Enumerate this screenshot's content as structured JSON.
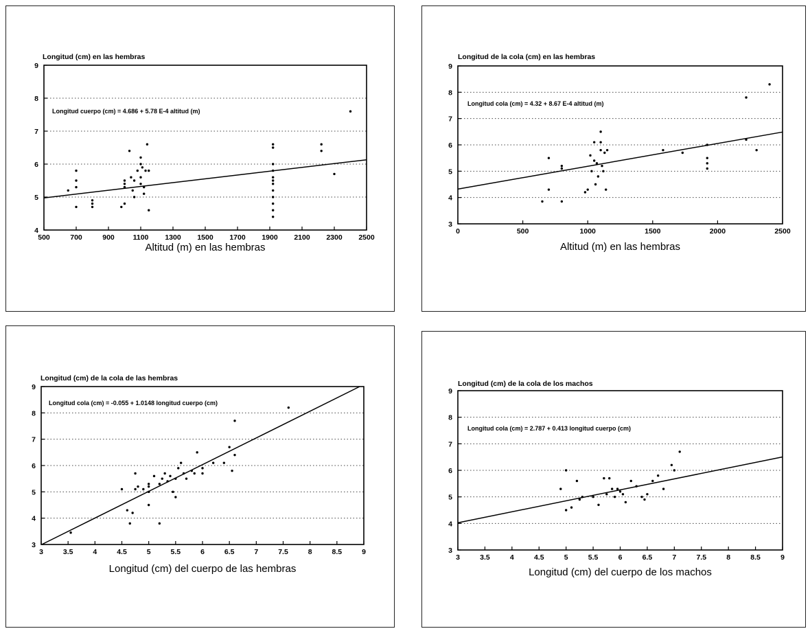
{
  "chart_data": [
    {
      "type": "scatter",
      "title": "Longitud (cm) en las hembras",
      "xlabel": "Altitud (m) en las hembras",
      "ylabel": "",
      "equation": "Longitud cuerpo (cm) = 4.686 + 5.78 E-4 altitud (m)",
      "xlim": [
        500,
        2500
      ],
      "ylim": [
        4,
        9
      ],
      "xticks": [
        500,
        700,
        900,
        1100,
        1300,
        1500,
        1700,
        1900,
        2100,
        2300,
        2500
      ],
      "yticks": [
        4,
        5,
        6,
        7,
        8,
        9
      ],
      "grid": "horizontal dotted",
      "fit_line": {
        "intercept": 4.686,
        "slope": 0.000578
      },
      "points": [
        [
          650,
          5.2
        ],
        [
          700,
          5.8
        ],
        [
          700,
          5.5
        ],
        [
          700,
          5.3
        ],
        [
          700,
          4.7
        ],
        [
          800,
          4.9
        ],
        [
          800,
          4.8
        ],
        [
          800,
          4.7
        ],
        [
          980,
          4.7
        ],
        [
          1000,
          5.5
        ],
        [
          1000,
          5.4
        ],
        [
          1000,
          5.3
        ],
        [
          1000,
          4.8
        ],
        [
          1030,
          6.4
        ],
        [
          1040,
          5.6
        ],
        [
          1050,
          5.2
        ],
        [
          1060,
          5.5
        ],
        [
          1060,
          5.0
        ],
        [
          1080,
          5.8
        ],
        [
          1100,
          6.2
        ],
        [
          1100,
          6.0
        ],
        [
          1100,
          5.6
        ],
        [
          1100,
          5.4
        ],
        [
          1110,
          5.9
        ],
        [
          1120,
          5.3
        ],
        [
          1120,
          5.1
        ],
        [
          1130,
          5.8
        ],
        [
          1140,
          6.6
        ],
        [
          1150,
          4.6
        ],
        [
          1150,
          5.8
        ],
        [
          1920,
          6.6
        ],
        [
          1920,
          6.5
        ],
        [
          1920,
          6.0
        ],
        [
          1920,
          5.8
        ],
        [
          1920,
          5.6
        ],
        [
          1920,
          5.5
        ],
        [
          1920,
          5.4
        ],
        [
          1920,
          5.2
        ],
        [
          1920,
          5.0
        ],
        [
          1920,
          4.8
        ],
        [
          1920,
          4.6
        ],
        [
          1920,
          4.4
        ],
        [
          2220,
          6.6
        ],
        [
          2220,
          6.4
        ],
        [
          2300,
          5.7
        ],
        [
          2400,
          7.6
        ]
      ]
    },
    {
      "type": "scatter",
      "title": "Longitud de la cola (cm) en las hembras",
      "xlabel": "Altitud (m) en las hembras",
      "ylabel": "",
      "equation": "Longitud cola (cm) = 4.32 + 8.67 E-4 altitud (m)",
      "xlim": [
        0,
        2500
      ],
      "ylim": [
        3,
        9
      ],
      "xticks": [
        0,
        500,
        1000,
        1500,
        2000,
        2500
      ],
      "yticks": [
        3,
        4,
        5,
        6,
        7,
        8,
        9
      ],
      "grid": "horizontal dotted",
      "fit_line": {
        "intercept": 4.32,
        "slope": 0.000867
      },
      "points": [
        [
          650,
          3.85
        ],
        [
          700,
          5.5
        ],
        [
          700,
          4.3
        ],
        [
          800,
          5.2
        ],
        [
          800,
          5.1
        ],
        [
          800,
          3.85
        ],
        [
          980,
          4.2
        ],
        [
          1000,
          4.3
        ],
        [
          1020,
          5.6
        ],
        [
          1030,
          5.0
        ],
        [
          1050,
          6.1
        ],
        [
          1050,
          5.4
        ],
        [
          1060,
          4.5
        ],
        [
          1070,
          5.3
        ],
        [
          1080,
          4.8
        ],
        [
          1100,
          6.5
        ],
        [
          1100,
          6.1
        ],
        [
          1100,
          5.8
        ],
        [
          1110,
          5.2
        ],
        [
          1120,
          5.0
        ],
        [
          1130,
          5.7
        ],
        [
          1140,
          4.3
        ],
        [
          1150,
          5.8
        ],
        [
          1580,
          5.8
        ],
        [
          1730,
          5.7
        ],
        [
          1920,
          6.0
        ],
        [
          1920,
          5.5
        ],
        [
          1920,
          5.3
        ],
        [
          1920,
          5.1
        ],
        [
          2220,
          7.8
        ],
        [
          2220,
          6.2
        ],
        [
          2300,
          5.8
        ],
        [
          2400,
          8.3
        ]
      ]
    },
    {
      "type": "scatter",
      "title": "Longitud (cm) de la cola de las hembras",
      "xlabel": "Longitud (cm) del cuerpo de las hembras",
      "ylabel": "",
      "equation": "Longitud cola (cm) = -0.055 + 1.0148 longitud cuerpo (cm)",
      "xlim": [
        3,
        9
      ],
      "ylim": [
        3,
        9
      ],
      "xticks": [
        3,
        3.5,
        4,
        4.5,
        5,
        5.5,
        6,
        6.5,
        7,
        7.5,
        8,
        8.5,
        9
      ],
      "yticks": [
        3,
        4,
        5,
        6,
        7,
        8,
        9
      ],
      "grid": "horizontal dotted",
      "fit_line": {
        "intercept": -0.055,
        "slope": 1.0148
      },
      "points": [
        [
          3.55,
          3.45
        ],
        [
          4.5,
          5.1
        ],
        [
          4.6,
          4.3
        ],
        [
          4.65,
          3.8
        ],
        [
          4.7,
          4.2
        ],
        [
          4.75,
          5.7
        ],
        [
          4.75,
          5.1
        ],
        [
          4.8,
          5.2
        ],
        [
          4.9,
          5.1
        ],
        [
          5.0,
          4.5
        ],
        [
          5.0,
          5.0
        ],
        [
          5.0,
          5.2
        ],
        [
          5.0,
          5.3
        ],
        [
          5.1,
          5.6
        ],
        [
          5.2,
          5.3
        ],
        [
          5.2,
          3.8
        ],
        [
          5.25,
          5.5
        ],
        [
          5.3,
          5.7
        ],
        [
          5.35,
          5.4
        ],
        [
          5.4,
          5.6
        ],
        [
          5.45,
          5.0
        ],
        [
          5.5,
          4.8
        ],
        [
          5.5,
          5.5
        ],
        [
          5.55,
          5.9
        ],
        [
          5.6,
          6.1
        ],
        [
          5.65,
          5.7
        ],
        [
          5.7,
          5.5
        ],
        [
          5.8,
          5.8
        ],
        [
          5.85,
          5.7
        ],
        [
          5.9,
          6.5
        ],
        [
          6.0,
          5.9
        ],
        [
          6.0,
          5.7
        ],
        [
          6.2,
          6.1
        ],
        [
          6.4,
          6.1
        ],
        [
          6.5,
          6.7
        ],
        [
          6.55,
          5.8
        ],
        [
          6.6,
          6.4
        ],
        [
          6.6,
          7.7
        ],
        [
          7.6,
          8.2
        ]
      ]
    },
    {
      "type": "scatter",
      "title": "Longitud (cm) de la cola de los machos",
      "xlabel": "Longitud (cm) del cuerpo de los machos",
      "ylabel": "",
      "equation": "Longitud cola (cm) = 2.787 + 0.413 longitud cuerpo (cm)",
      "xlim": [
        3,
        9
      ],
      "ylim": [
        3,
        9
      ],
      "xticks": [
        3,
        3.5,
        4,
        4.5,
        5,
        5.5,
        6,
        6.5,
        7,
        7.5,
        8,
        8.5,
        9
      ],
      "yticks": [
        3,
        4,
        5,
        6,
        7,
        8,
        9
      ],
      "grid": "horizontal dotted",
      "fit_line": {
        "intercept": 2.787,
        "slope": 0.413
      },
      "points": [
        [
          4.9,
          5.3
        ],
        [
          5.0,
          6.0
        ],
        [
          5.0,
          4.5
        ],
        [
          5.1,
          4.6
        ],
        [
          5.2,
          5.6
        ],
        [
          5.25,
          4.9
        ],
        [
          5.3,
          5.0
        ],
        [
          5.5,
          5.0
        ],
        [
          5.6,
          4.7
        ],
        [
          5.7,
          5.7
        ],
        [
          5.75,
          5.1
        ],
        [
          5.8,
          5.7
        ],
        [
          5.85,
          5.3
        ],
        [
          5.9,
          5.0
        ],
        [
          5.95,
          5.3
        ],
        [
          6.0,
          5.2
        ],
        [
          6.05,
          5.1
        ],
        [
          6.1,
          4.8
        ],
        [
          6.2,
          5.6
        ],
        [
          6.3,
          5.4
        ],
        [
          6.4,
          5.0
        ],
        [
          6.45,
          4.9
        ],
        [
          6.5,
          5.1
        ],
        [
          6.6,
          5.6
        ],
        [
          6.7,
          5.8
        ],
        [
          6.8,
          5.3
        ],
        [
          6.95,
          6.2
        ],
        [
          7.0,
          6.0
        ],
        [
          7.1,
          6.7
        ]
      ]
    }
  ]
}
